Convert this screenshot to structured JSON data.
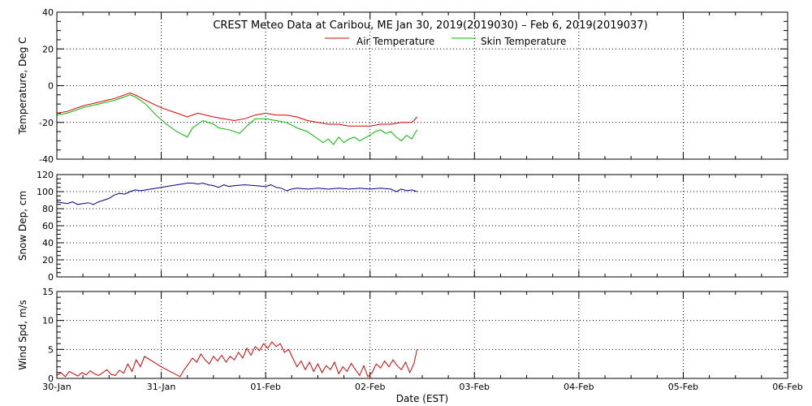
{
  "title": "CREST Meteo Data at Caribou, ME   Jan 30, 2019(2019030) – Feb  6, 2019(2019037)",
  "colors": {
    "air": "#dd0000",
    "skin": "#00bb00",
    "snow": "#000088",
    "wind": "#dd0000",
    "frame": "#000000",
    "grid": "#000000"
  },
  "chart_data": [
    {
      "type": "line",
      "title": "CREST Meteo Data at Caribou, ME   Jan 30, 2019(2019030) – Feb  6, 2019(2019037)",
      "xlabel": "",
      "ylabel": "Temperature, Deg C",
      "xlim": [
        0,
        7
      ],
      "ylim": [
        -40,
        40
      ],
      "yticks": [
        "-40",
        "-20",
        "0",
        "20",
        "40"
      ],
      "x_tick_labels": [],
      "grid": true,
      "legend_position": "top-center",
      "series": [
        {
          "name": "Air Temperature",
          "color": "#dd0000",
          "points": [
            [
              0.0,
              -15
            ],
            [
              0.1,
              -14
            ],
            [
              0.25,
              -11
            ],
            [
              0.4,
              -9
            ],
            [
              0.55,
              -7
            ],
            [
              0.65,
              -5
            ],
            [
              0.7,
              -4
            ],
            [
              0.75,
              -5
            ],
            [
              0.85,
              -8
            ],
            [
              1.0,
              -12
            ],
            [
              1.15,
              -15
            ],
            [
              1.25,
              -17
            ],
            [
              1.35,
              -15
            ],
            [
              1.5,
              -17
            ],
            [
              1.6,
              -18
            ],
            [
              1.7,
              -19
            ],
            [
              1.8,
              -18
            ],
            [
              1.9,
              -16
            ],
            [
              2.0,
              -15
            ],
            [
              2.1,
              -16
            ],
            [
              2.2,
              -16
            ],
            [
              2.3,
              -17
            ],
            [
              2.4,
              -19
            ],
            [
              2.5,
              -20
            ],
            [
              2.6,
              -21
            ],
            [
              2.7,
              -21
            ],
            [
              2.8,
              -22
            ],
            [
              2.9,
              -22
            ],
            [
              3.0,
              -22
            ],
            [
              3.1,
              -21
            ],
            [
              3.2,
              -21
            ],
            [
              3.3,
              -20
            ],
            [
              3.4,
              -20
            ],
            [
              3.42,
              -19
            ],
            [
              3.45,
              -17
            ]
          ]
        },
        {
          "name": "Skin Temperature",
          "color": "#00bb00",
          "points": [
            [
              0.0,
              -16
            ],
            [
              0.1,
              -15
            ],
            [
              0.25,
              -12
            ],
            [
              0.4,
              -10
            ],
            [
              0.55,
              -8
            ],
            [
              0.65,
              -6
            ],
            [
              0.7,
              -5
            ],
            [
              0.75,
              -6
            ],
            [
              0.85,
              -10
            ],
            [
              0.95,
              -16
            ],
            [
              1.05,
              -21
            ],
            [
              1.15,
              -25
            ],
            [
              1.25,
              -28
            ],
            [
              1.3,
              -23
            ],
            [
              1.4,
              -19
            ],
            [
              1.5,
              -21
            ],
            [
              1.55,
              -23
            ],
            [
              1.65,
              -24
            ],
            [
              1.75,
              -26
            ],
            [
              1.82,
              -22
            ],
            [
              1.9,
              -18
            ],
            [
              2.0,
              -18
            ],
            [
              2.1,
              -19
            ],
            [
              2.2,
              -20
            ],
            [
              2.3,
              -23
            ],
            [
              2.4,
              -25
            ],
            [
              2.5,
              -29
            ],
            [
              2.55,
              -31
            ],
            [
              2.6,
              -29
            ],
            [
              2.65,
              -32
            ],
            [
              2.7,
              -28
            ],
            [
              2.75,
              -31
            ],
            [
              2.8,
              -29
            ],
            [
              2.85,
              -28
            ],
            [
              2.9,
              -30
            ],
            [
              3.0,
              -27
            ],
            [
              3.05,
              -25
            ],
            [
              3.1,
              -24
            ],
            [
              3.15,
              -26
            ],
            [
              3.2,
              -25
            ],
            [
              3.25,
              -28
            ],
            [
              3.3,
              -30
            ],
            [
              3.35,
              -27
            ],
            [
              3.4,
              -29
            ],
            [
              3.45,
              -24
            ]
          ]
        }
      ]
    },
    {
      "type": "line",
      "title": "",
      "xlabel": "",
      "ylabel": "Snow Dep, cm",
      "xlim": [
        0,
        7
      ],
      "ylim": [
        0,
        120
      ],
      "yticks": [
        "0",
        "20",
        "40",
        "60",
        "80",
        "100",
        "120"
      ],
      "x_tick_labels": [],
      "grid": true,
      "series": [
        {
          "name": "",
          "color": "#000088",
          "points": [
            [
              0.0,
              88
            ],
            [
              0.05,
              87
            ],
            [
              0.1,
              86
            ],
            [
              0.15,
              88
            ],
            [
              0.2,
              85
            ],
            [
              0.25,
              86
            ],
            [
              0.3,
              87
            ],
            [
              0.35,
              85
            ],
            [
              0.4,
              88
            ],
            [
              0.45,
              90
            ],
            [
              0.5,
              92
            ],
            [
              0.55,
              96
            ],
            [
              0.6,
              98
            ],
            [
              0.65,
              97
            ],
            [
              0.7,
              100
            ],
            [
              0.75,
              102
            ],
            [
              0.8,
              101
            ],
            [
              0.9,
              103
            ],
            [
              1.0,
              105
            ],
            [
              1.1,
              107
            ],
            [
              1.2,
              109
            ],
            [
              1.25,
              110
            ],
            [
              1.3,
              110
            ],
            [
              1.35,
              109
            ],
            [
              1.4,
              110
            ],
            [
              1.45,
              108
            ],
            [
              1.5,
              107
            ],
            [
              1.55,
              105
            ],
            [
              1.6,
              108
            ],
            [
              1.65,
              106
            ],
            [
              1.7,
              107
            ],
            [
              1.8,
              108
            ],
            [
              1.9,
              107
            ],
            [
              2.0,
              106
            ],
            [
              2.05,
              108
            ],
            [
              2.1,
              105
            ],
            [
              2.15,
              104
            ],
            [
              2.2,
              101
            ],
            [
              2.25,
              103
            ],
            [
              2.3,
              104
            ],
            [
              2.4,
              103
            ],
            [
              2.5,
              104
            ],
            [
              2.6,
              103
            ],
            [
              2.7,
              104
            ],
            [
              2.8,
              103
            ],
            [
              2.9,
              104
            ],
            [
              3.0,
              103
            ],
            [
              3.1,
              104
            ],
            [
              3.2,
              103
            ],
            [
              3.25,
              100
            ],
            [
              3.3,
              103
            ],
            [
              3.35,
              101
            ],
            [
              3.4,
              102
            ],
            [
              3.45,
              100
            ]
          ]
        }
      ]
    },
    {
      "type": "line",
      "title": "",
      "xlabel": "Date (EST)",
      "ylabel": "Wind Spd, m/s",
      "xlim": [
        0,
        7
      ],
      "ylim": [
        0,
        15
      ],
      "yticks": [
        "0",
        "5",
        "10",
        "15"
      ],
      "x_tick_labels": [
        "30-Jan",
        "31-Jan",
        "01-Feb",
        "02-Feb",
        "03-Feb",
        "04-Feb",
        "05-Feb",
        "06-Feb"
      ],
      "grid": true,
      "series": [
        {
          "name": "",
          "color": "#dd0000",
          "points": [
            [
              0.0,
              0.5
            ],
            [
              0.04,
              1.0
            ],
            [
              0.08,
              0.3
            ],
            [
              0.12,
              1.2
            ],
            [
              0.16,
              0.8
            ],
            [
              0.2,
              0.4
            ],
            [
              0.24,
              1.0
            ],
            [
              0.28,
              0.6
            ],
            [
              0.32,
              1.3
            ],
            [
              0.36,
              0.8
            ],
            [
              0.4,
              0.5
            ],
            [
              0.44,
              1.0
            ],
            [
              0.48,
              1.5
            ],
            [
              0.52,
              0.7
            ],
            [
              0.56,
              0.5
            ],
            [
              0.6,
              1.4
            ],
            [
              0.64,
              0.9
            ],
            [
              0.68,
              2.5
            ],
            [
              0.72,
              1.2
            ],
            [
              0.76,
              3.2
            ],
            [
              0.8,
              2.0
            ],
            [
              0.84,
              3.8
            ],
            [
              1.0,
              2.0
            ],
            [
              1.18,
              0.3
            ],
            [
              1.22,
              1.5
            ],
            [
              1.26,
              2.5
            ],
            [
              1.3,
              3.5
            ],
            [
              1.34,
              2.8
            ],
            [
              1.38,
              4.2
            ],
            [
              1.42,
              3.2
            ],
            [
              1.46,
              2.5
            ],
            [
              1.5,
              3.8
            ],
            [
              1.54,
              3.0
            ],
            [
              1.58,
              4.0
            ],
            [
              1.62,
              2.8
            ],
            [
              1.66,
              3.8
            ],
            [
              1.7,
              3.2
            ],
            [
              1.74,
              4.5
            ],
            [
              1.78,
              3.5
            ],
            [
              1.82,
              5.2
            ],
            [
              1.86,
              4.0
            ],
            [
              1.9,
              5.5
            ],
            [
              1.94,
              4.8
            ],
            [
              1.98,
              6.0
            ],
            [
              2.02,
              5.2
            ],
            [
              2.06,
              6.3
            ],
            [
              2.1,
              5.5
            ],
            [
              2.14,
              6.0
            ],
            [
              2.18,
              4.5
            ],
            [
              2.22,
              5.0
            ],
            [
              2.26,
              3.5
            ],
            [
              2.3,
              2.0
            ],
            [
              2.34,
              3.0
            ],
            [
              2.38,
              1.5
            ],
            [
              2.42,
              2.8
            ],
            [
              2.46,
              1.2
            ],
            [
              2.5,
              2.5
            ],
            [
              2.54,
              1.0
            ],
            [
              2.58,
              2.2
            ],
            [
              2.62,
              1.5
            ],
            [
              2.66,
              2.8
            ],
            [
              2.7,
              0.8
            ],
            [
              2.74,
              2.0
            ],
            [
              2.78,
              1.2
            ],
            [
              2.82,
              2.6
            ],
            [
              2.86,
              1.5
            ],
            [
              2.9,
              0.5
            ],
            [
              2.94,
              2.2
            ],
            [
              2.98,
              0.3
            ],
            [
              3.02,
              1.0
            ],
            [
              3.06,
              2.5
            ],
            [
              3.1,
              1.8
            ],
            [
              3.14,
              3.0
            ],
            [
              3.18,
              2.0
            ],
            [
              3.22,
              3.2
            ],
            [
              3.26,
              2.2
            ],
            [
              3.3,
              1.5
            ],
            [
              3.34,
              2.8
            ],
            [
              3.38,
              1.0
            ],
            [
              3.42,
              2.5
            ],
            [
              3.45,
              5.0
            ]
          ]
        }
      ]
    }
  ]
}
